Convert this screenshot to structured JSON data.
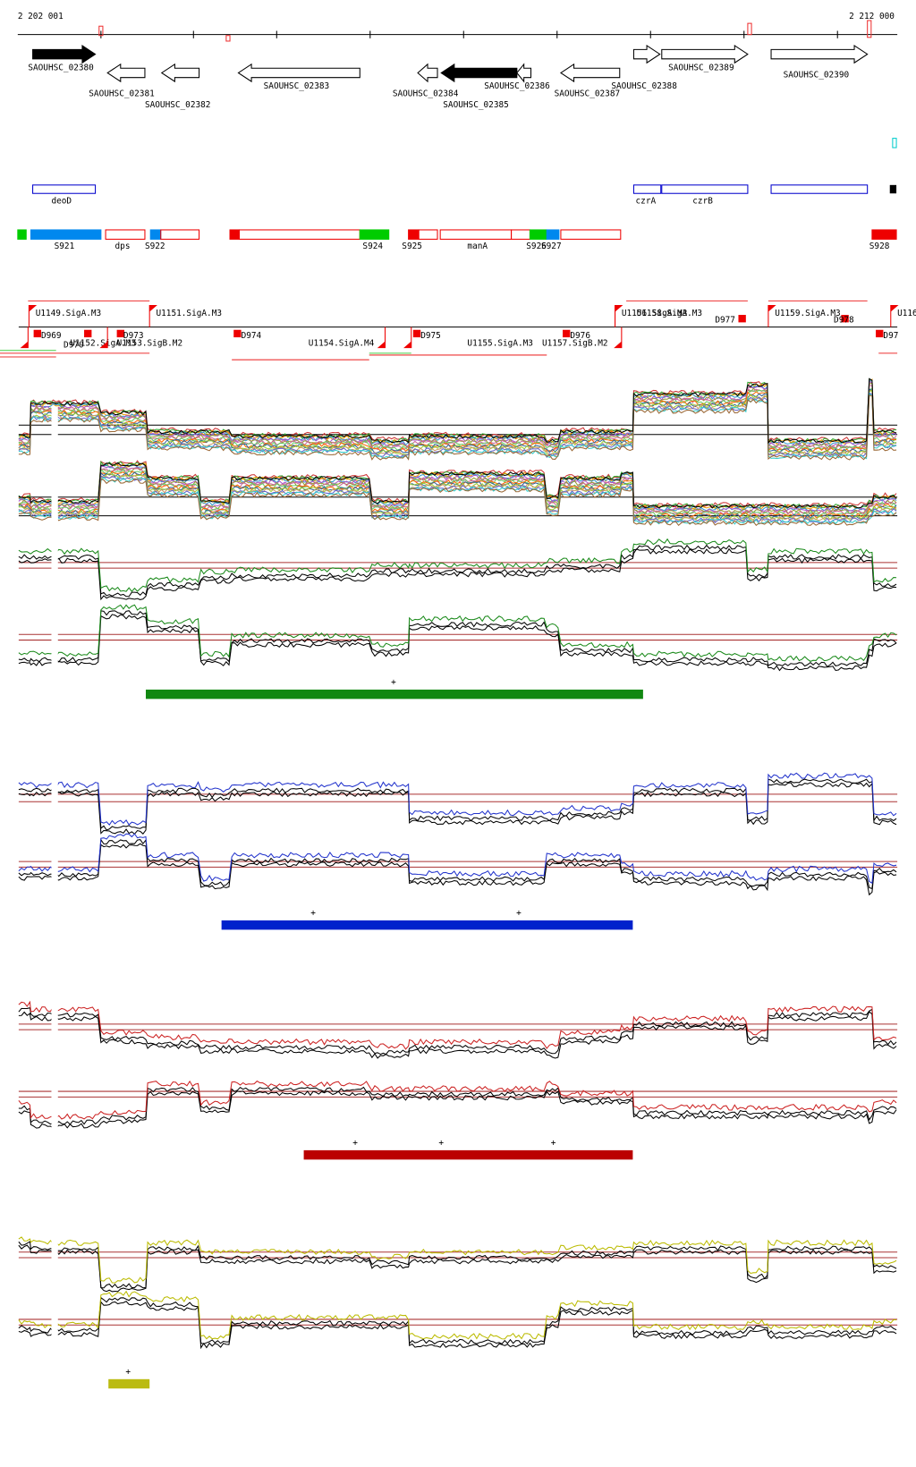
{
  "coordinates": {
    "start": "2 202 001",
    "end": "2 212 000"
  },
  "genes": [
    "SAOUHSC_02380",
    "SAOUHSC_02381",
    "SAOUHSC_02382",
    "SAOUHSC_02383",
    "SAOUHSC_02384",
    "SAOUHSC_02385",
    "SAOUHSC_02386",
    "SAOUHSC_02387",
    "SAOUHSC_02388",
    "SAOUHSC_02389",
    "SAOUHSC_02390"
  ],
  "operons": [
    "deoD",
    "czrA",
    "czrB"
  ],
  "rna_features": [
    "S921",
    "dps",
    "S922",
    "S924",
    "S925",
    "manA",
    "S926",
    "S927",
    "S928"
  ],
  "promoters": [
    "U1149.SigA.M3",
    "U1151.SigA.M3",
    "U1156.SigA.M3",
    "U1158.SigA.M3",
    "U1159.SigA.M3",
    "U116",
    "U1152.SigA.M3",
    "U1153.SigB.M2",
    "U1154.SigA.M4",
    "U1155.SigA.M3",
    "U1157.SigB.M2"
  ],
  "terminators": [
    "D969",
    "D970",
    "D973",
    "D974",
    "D975",
    "D976",
    "D977",
    "D978",
    "D97"
  ],
  "condition_marks": {
    "green": [
      "+"
    ],
    "blue": [
      "+",
      "+"
    ],
    "red": [
      "+",
      "+",
      "+"
    ],
    "yellow": [
      "+"
    ]
  }
}
